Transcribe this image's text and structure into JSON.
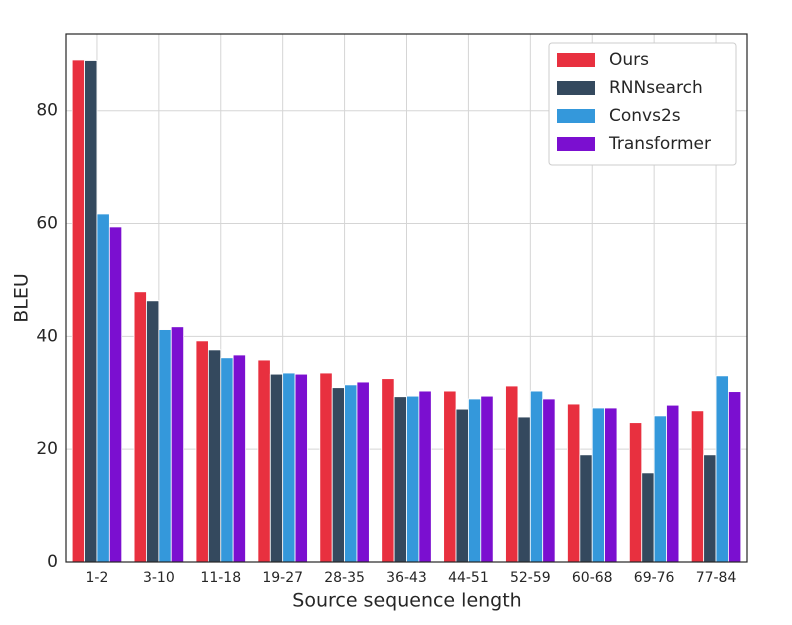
{
  "chart_data": {
    "type": "bar",
    "x_label": "Source sequence length",
    "y_label": "BLEU",
    "categories": [
      "1-2",
      "3-10",
      "11-18",
      "19-27",
      "28-35",
      "36-43",
      "44-51",
      "52-59",
      "60-68",
      "69-76",
      "77-84"
    ],
    "series": [
      {
        "name": "Ours",
        "color": "#e8303f",
        "values": [
          89.0,
          47.9,
          39.2,
          35.8,
          33.5,
          32.5,
          30.3,
          31.2,
          28.0,
          24.7,
          26.8
        ]
      },
      {
        "name": "RNNsearch",
        "color": "#34495e",
        "values": [
          88.9,
          46.3,
          37.6,
          33.3,
          30.9,
          29.3,
          27.1,
          25.7,
          19.0,
          15.8,
          19.0
        ]
      },
      {
        "name": "Convs2s",
        "color": "#3498db",
        "values": [
          61.7,
          41.2,
          36.2,
          33.5,
          31.4,
          29.4,
          28.9,
          30.3,
          27.3,
          25.9,
          33.0
        ]
      },
      {
        "name": "Transformer",
        "color": "#7b0fd0",
        "values": [
          59.4,
          41.7,
          36.7,
          33.3,
          31.9,
          30.3,
          29.4,
          28.9,
          27.3,
          27.8,
          30.2
        ]
      }
    ],
    "ylim": [
      0,
      93.6
    ],
    "yticks": [
      0,
      20,
      40,
      60,
      80
    ],
    "grid": true,
    "legend": "upper right"
  }
}
